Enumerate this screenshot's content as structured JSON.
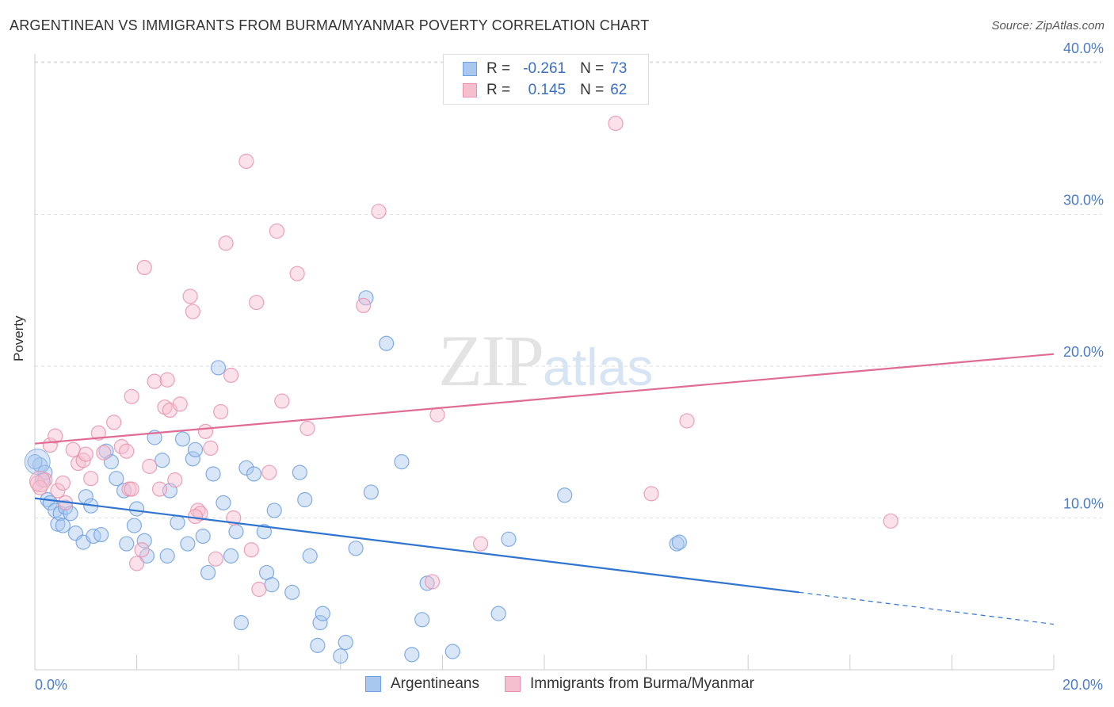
{
  "title": "ARGENTINEAN VS IMMIGRANTS FROM BURMA/MYANMAR POVERTY CORRELATION CHART",
  "source": "Source: ZipAtlas.com",
  "watermark": {
    "zip": "ZIP",
    "atlas": "atlas"
  },
  "legend": {
    "r_label": "R =",
    "n_label": "N =",
    "rows": [
      {
        "r": "-0.261",
        "n": "73"
      },
      {
        "r": "0.145",
        "n": "62"
      }
    ]
  },
  "colors": {
    "blue_fill": "#a9c8f0",
    "blue_stroke": "#6f9fe0",
    "blue_line": "#2f74d0",
    "pink_fill": "#f6bfd0",
    "pink_stroke": "#e991ad",
    "pink_line": "#e06b95",
    "tick_text": "#4a7cc6",
    "grid": "#dddddd"
  },
  "chart_data": {
    "type": "scatter",
    "title": "ARGENTINEAN VS IMMIGRANTS FROM BURMA/MYANMAR POVERTY CORRELATION CHART",
    "xlabel": "",
    "ylabel": "Poverty",
    "xlim": [
      0,
      20
    ],
    "ylim": [
      0,
      40
    ],
    "x_tick_labels": [
      "0.0%",
      "20.0%"
    ],
    "y_tick_labels": [
      "10.0%",
      "20.0%",
      "30.0%",
      "40.0%"
    ],
    "y_ticks": [
      10,
      20,
      30,
      40
    ],
    "grid": "horizontal dashed",
    "legend_placement": "top-center and bottom",
    "series": [
      {
        "name": "Argentineans",
        "color": "#a9c8f0",
        "trend": {
          "x0": 0,
          "y0": 11.3,
          "x1": 15,
          "y1": 5.1,
          "dashed_to_x": 20,
          "dashed_to_y": 3.0
        },
        "points": [
          [
            0.1,
            13.5
          ],
          [
            0.15,
            12.5
          ],
          [
            0.2,
            13.0
          ],
          [
            0.25,
            11.2
          ],
          [
            0.3,
            11.0
          ],
          [
            0.4,
            10.5
          ],
          [
            0.45,
            9.6
          ],
          [
            0.5,
            10.3
          ],
          [
            0.55,
            9.5
          ],
          [
            0.6,
            10.7
          ],
          [
            0.7,
            10.3
          ],
          [
            0.8,
            9.0
          ],
          [
            1.0,
            11.4
          ],
          [
            1.1,
            10.8
          ],
          [
            0.95,
            8.4
          ],
          [
            1.15,
            8.8
          ],
          [
            1.3,
            8.9
          ],
          [
            1.4,
            14.4
          ],
          [
            1.5,
            13.7
          ],
          [
            1.6,
            12.6
          ],
          [
            1.75,
            11.8
          ],
          [
            1.8,
            8.3
          ],
          [
            1.95,
            9.5
          ],
          [
            2.0,
            10.6
          ],
          [
            2.15,
            8.5
          ],
          [
            2.2,
            7.5
          ],
          [
            2.35,
            15.3
          ],
          [
            2.5,
            13.8
          ],
          [
            2.6,
            7.5
          ],
          [
            2.65,
            11.8
          ],
          [
            2.8,
            9.7
          ],
          [
            2.9,
            15.2
          ],
          [
            3.0,
            8.3
          ],
          [
            3.1,
            13.9
          ],
          [
            3.15,
            14.5
          ],
          [
            3.3,
            8.8
          ],
          [
            3.4,
            6.4
          ],
          [
            3.5,
            12.9
          ],
          [
            3.6,
            19.9
          ],
          [
            3.7,
            11.0
          ],
          [
            3.85,
            7.5
          ],
          [
            3.95,
            9.1
          ],
          [
            4.05,
            3.1
          ],
          [
            4.15,
            13.3
          ],
          [
            4.3,
            12.9
          ],
          [
            4.5,
            9.1
          ],
          [
            4.55,
            6.4
          ],
          [
            4.65,
            5.6
          ],
          [
            4.7,
            10.5
          ],
          [
            5.05,
            5.1
          ],
          [
            5.2,
            13.0
          ],
          [
            5.3,
            11.2
          ],
          [
            5.4,
            7.5
          ],
          [
            5.55,
            1.6
          ],
          [
            5.6,
            3.1
          ],
          [
            5.65,
            3.7
          ],
          [
            6.0,
            0.9
          ],
          [
            6.1,
            1.8
          ],
          [
            6.3,
            8.0
          ],
          [
            6.5,
            24.5
          ],
          [
            6.6,
            11.7
          ],
          [
            6.9,
            21.5
          ],
          [
            7.2,
            13.7
          ],
          [
            7.4,
            1.0
          ],
          [
            7.6,
            3.3
          ],
          [
            7.7,
            5.7
          ],
          [
            8.2,
            1.2
          ],
          [
            9.1,
            3.7
          ],
          [
            9.3,
            8.6
          ],
          [
            10.4,
            11.5
          ],
          [
            12.6,
            8.3
          ],
          [
            12.65,
            8.4
          ],
          [
            0.0,
            13.7
          ]
        ]
      },
      {
        "name": "Immigrants from Burma/Myanmar",
        "color": "#f6bfd0",
        "trend": {
          "x0": 0,
          "y0": 14.9,
          "x1": 20,
          "y1": 20.8
        },
        "points": [
          [
            0.05,
            12.3
          ],
          [
            0.2,
            12.5
          ],
          [
            0.3,
            14.8
          ],
          [
            0.4,
            15.4
          ],
          [
            0.45,
            11.8
          ],
          [
            0.6,
            11.0
          ],
          [
            0.75,
            14.5
          ],
          [
            0.85,
            13.6
          ],
          [
            0.95,
            13.8
          ],
          [
            1.0,
            14.2
          ],
          [
            1.1,
            12.6
          ],
          [
            1.25,
            15.6
          ],
          [
            1.35,
            14.3
          ],
          [
            1.55,
            16.3
          ],
          [
            1.7,
            14.7
          ],
          [
            1.8,
            14.4
          ],
          [
            1.85,
            11.9
          ],
          [
            1.9,
            18.0
          ],
          [
            2.0,
            7.0
          ],
          [
            2.1,
            7.9
          ],
          [
            2.15,
            26.5
          ],
          [
            2.25,
            13.4
          ],
          [
            2.35,
            19.0
          ],
          [
            2.45,
            11.9
          ],
          [
            2.55,
            17.3
          ],
          [
            2.6,
            19.1
          ],
          [
            2.65,
            17.1
          ],
          [
            2.75,
            12.5
          ],
          [
            2.85,
            17.5
          ],
          [
            3.05,
            24.6
          ],
          [
            3.1,
            23.6
          ],
          [
            3.2,
            10.5
          ],
          [
            3.25,
            10.3
          ],
          [
            3.35,
            15.7
          ],
          [
            3.45,
            14.6
          ],
          [
            3.55,
            7.3
          ],
          [
            3.65,
            17.0
          ],
          [
            3.75,
            28.1
          ],
          [
            3.85,
            19.4
          ],
          [
            3.9,
            10.0
          ],
          [
            4.15,
            33.5
          ],
          [
            4.25,
            7.9
          ],
          [
            4.35,
            24.2
          ],
          [
            4.4,
            5.3
          ],
          [
            4.6,
            13.0
          ],
          [
            4.75,
            28.9
          ],
          [
            4.85,
            17.7
          ],
          [
            5.15,
            26.1
          ],
          [
            5.35,
            15.9
          ],
          [
            6.45,
            24.0
          ],
          [
            6.75,
            30.2
          ],
          [
            7.8,
            5.8
          ],
          [
            7.9,
            16.8
          ],
          [
            8.75,
            8.3
          ],
          [
            11.4,
            36.0
          ],
          [
            12.1,
            11.6
          ],
          [
            12.8,
            16.4
          ],
          [
            16.8,
            9.8
          ],
          [
            0.1,
            12.0
          ],
          [
            0.55,
            12.3
          ],
          [
            1.9,
            11.9
          ],
          [
            3.15,
            10.1
          ]
        ]
      }
    ]
  }
}
